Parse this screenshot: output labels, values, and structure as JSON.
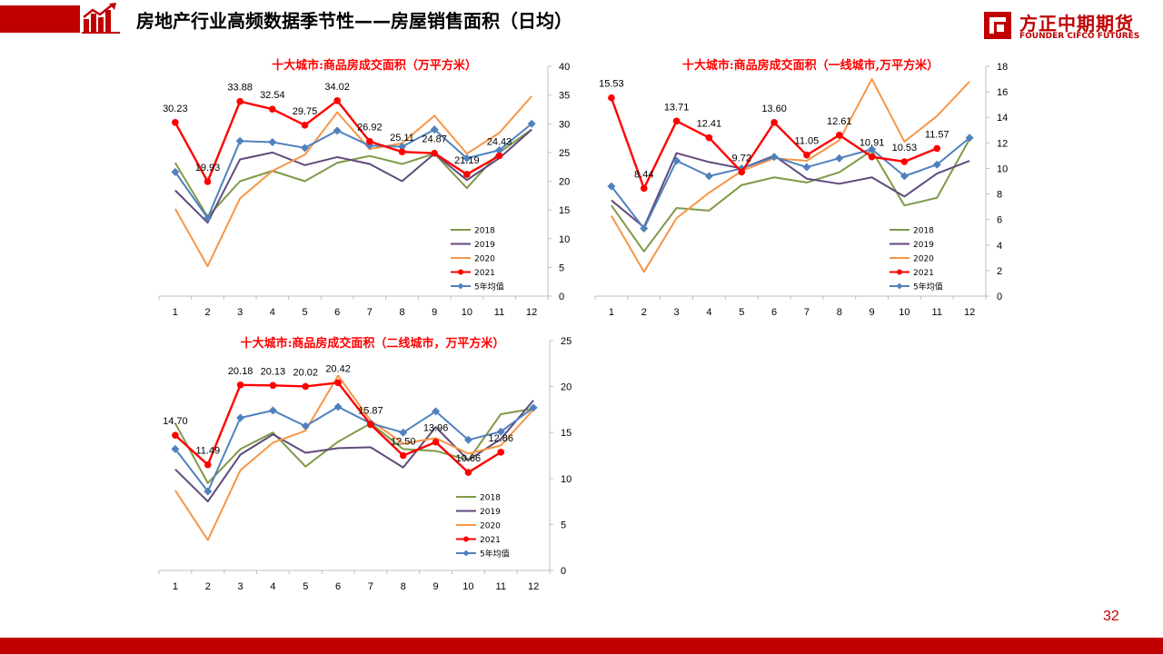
{
  "header": {
    "title": "房地产行业高频数据季节性——房屋销售面积（日均）",
    "accent_color": "#c00000",
    "icon": "building-chart-icon"
  },
  "logo": {
    "cn": "方正中期期货",
    "en": "FOUNDER CIFCO FUTURES",
    "icon": "founder-logo-icon"
  },
  "page_number": "32",
  "series_styles": {
    "2018": {
      "color": "#7f9a48",
      "marker": "none"
    },
    "2019": {
      "color": "#604a7b",
      "marker": "none"
    },
    "2020": {
      "color": "#f79646",
      "marker": "none"
    },
    "2021": {
      "color": "#ff0000",
      "marker": "circle"
    },
    "5年均值": {
      "color": "#4f81bd",
      "marker": "diamond"
    }
  },
  "chart_data": [
    {
      "type": "line",
      "title": "十大城市:商品房成交面积（万平方米）",
      "categories": [
        "1",
        "2",
        "3",
        "4",
        "5",
        "6",
        "7",
        "8",
        "9",
        "10",
        "11",
        "12"
      ],
      "ylim": [
        0,
        40
      ],
      "yticks": [
        "0",
        "5",
        "10",
        "15",
        "20",
        "25",
        "30",
        "35",
        "40"
      ],
      "legend": "bottom-right",
      "series": [
        {
          "name": "2018",
          "values": [
            23.2,
            13.8,
            20.0,
            21.8,
            20.0,
            23.2,
            24.4,
            23.0,
            24.8,
            18.8,
            25.0,
            29.0
          ]
        },
        {
          "name": "2019",
          "values": [
            18.4,
            12.8,
            23.8,
            25.0,
            22.8,
            24.2,
            23.0,
            20.0,
            24.8,
            20.2,
            24.0,
            29.0
          ]
        },
        {
          "name": "2020",
          "values": [
            15.2,
            5.2,
            17.0,
            21.8,
            24.6,
            32.0,
            25.6,
            26.6,
            31.4,
            24.8,
            28.4,
            34.8
          ]
        },
        {
          "name": "2021",
          "values": [
            30.23,
            19.93,
            33.88,
            32.54,
            29.75,
            34.02,
            26.92,
            25.11,
            24.87,
            21.19,
            24.43,
            null
          ],
          "labels": [
            "30.23",
            "19.93",
            "33.88",
            "32.54",
            "29.75",
            "34.02",
            "26.92",
            "25.11",
            "24.87",
            "21.19",
            "24.43",
            ""
          ]
        },
        {
          "name": "5年均值",
          "values": [
            21.6,
            13.6,
            27.0,
            26.8,
            25.8,
            28.8,
            26.2,
            26.0,
            29.0,
            24.0,
            25.4,
            30.0
          ]
        }
      ]
    },
    {
      "type": "line",
      "title": "十大城市:商品房成交面积（一线城市,万平方米）",
      "categories": [
        "1",
        "2",
        "3",
        "4",
        "5",
        "6",
        "7",
        "8",
        "9",
        "10",
        "11",
        "12"
      ],
      "ylim": [
        0,
        18
      ],
      "yticks": [
        "0",
        "2",
        "4",
        "6",
        "8",
        "10",
        "12",
        "14",
        "16",
        "18"
      ],
      "legend": "bottom-right",
      "series": [
        {
          "name": "2018",
          "values": [
            7.1,
            3.5,
            6.9,
            6.7,
            8.7,
            9.3,
            8.9,
            9.7,
            11.4,
            7.1,
            7.7,
            12.3
          ]
        },
        {
          "name": "2019",
          "values": [
            7.5,
            5.4,
            11.2,
            10.5,
            10.0,
            11.0,
            9.2,
            8.8,
            9.3,
            7.8,
            9.6,
            10.6
          ]
        },
        {
          "name": "2020",
          "values": [
            6.3,
            1.9,
            6.1,
            8.1,
            9.8,
            10.8,
            10.6,
            12.2,
            17.0,
            12.1,
            14.1,
            16.8
          ]
        },
        {
          "name": "2021",
          "values": [
            15.53,
            8.44,
            13.71,
            12.41,
            9.72,
            13.6,
            11.05,
            12.61,
            10.91,
            10.53,
            11.57,
            null
          ],
          "labels": [
            "15.53",
            "8.44",
            "13.71",
            "12.41",
            "9.72",
            "13.60",
            "11.05",
            "12.61",
            "10.91",
            "10.53",
            "11.57",
            ""
          ]
        },
        {
          "name": "5年均值",
          "values": [
            8.6,
            5.3,
            10.6,
            9.4,
            10.0,
            10.9,
            10.1,
            10.8,
            11.5,
            9.4,
            10.3,
            12.4
          ]
        }
      ]
    },
    {
      "type": "line",
      "title": "十大城市:商品房成交面积（二线城市，万平方米）",
      "categories": [
        "1",
        "2",
        "3",
        "4",
        "5",
        "6",
        "7",
        "8",
        "9",
        "10",
        "11",
        "12"
      ],
      "ylim": [
        0,
        25
      ],
      "yticks": [
        "0",
        "5",
        "10",
        "15",
        "20",
        "25"
      ],
      "legend": "bottom-right",
      "series": [
        {
          "name": "2018",
          "values": [
            16.0,
            9.5,
            13.2,
            15.0,
            11.3,
            14.0,
            16.0,
            13.2,
            13.0,
            12.0,
            17.0,
            17.6
          ]
        },
        {
          "name": "2019",
          "values": [
            11.0,
            7.5,
            12.6,
            14.8,
            12.8,
            13.3,
            13.4,
            11.2,
            15.6,
            12.0,
            14.3,
            18.5
          ]
        },
        {
          "name": "2020",
          "values": [
            8.7,
            3.3,
            10.9,
            13.9,
            15.2,
            21.2,
            16.3,
            13.8,
            14.4,
            12.7,
            13.6,
            17.5
          ]
        },
        {
          "name": "2021",
          "values": [
            14.7,
            11.49,
            20.18,
            20.13,
            20.02,
            20.42,
            15.87,
            12.5,
            13.96,
            10.66,
            12.86,
            null
          ],
          "labels": [
            "14.70",
            "11.49",
            "20.18",
            "20.13",
            "20.02",
            "20.42",
            "15.87",
            "12.50",
            "13.96",
            "10.66",
            "12.86",
            ""
          ]
        },
        {
          "name": "5年均值",
          "values": [
            13.2,
            8.6,
            16.6,
            17.4,
            15.7,
            17.8,
            16.0,
            15.0,
            17.3,
            14.2,
            15.1,
            17.7
          ]
        }
      ]
    }
  ]
}
